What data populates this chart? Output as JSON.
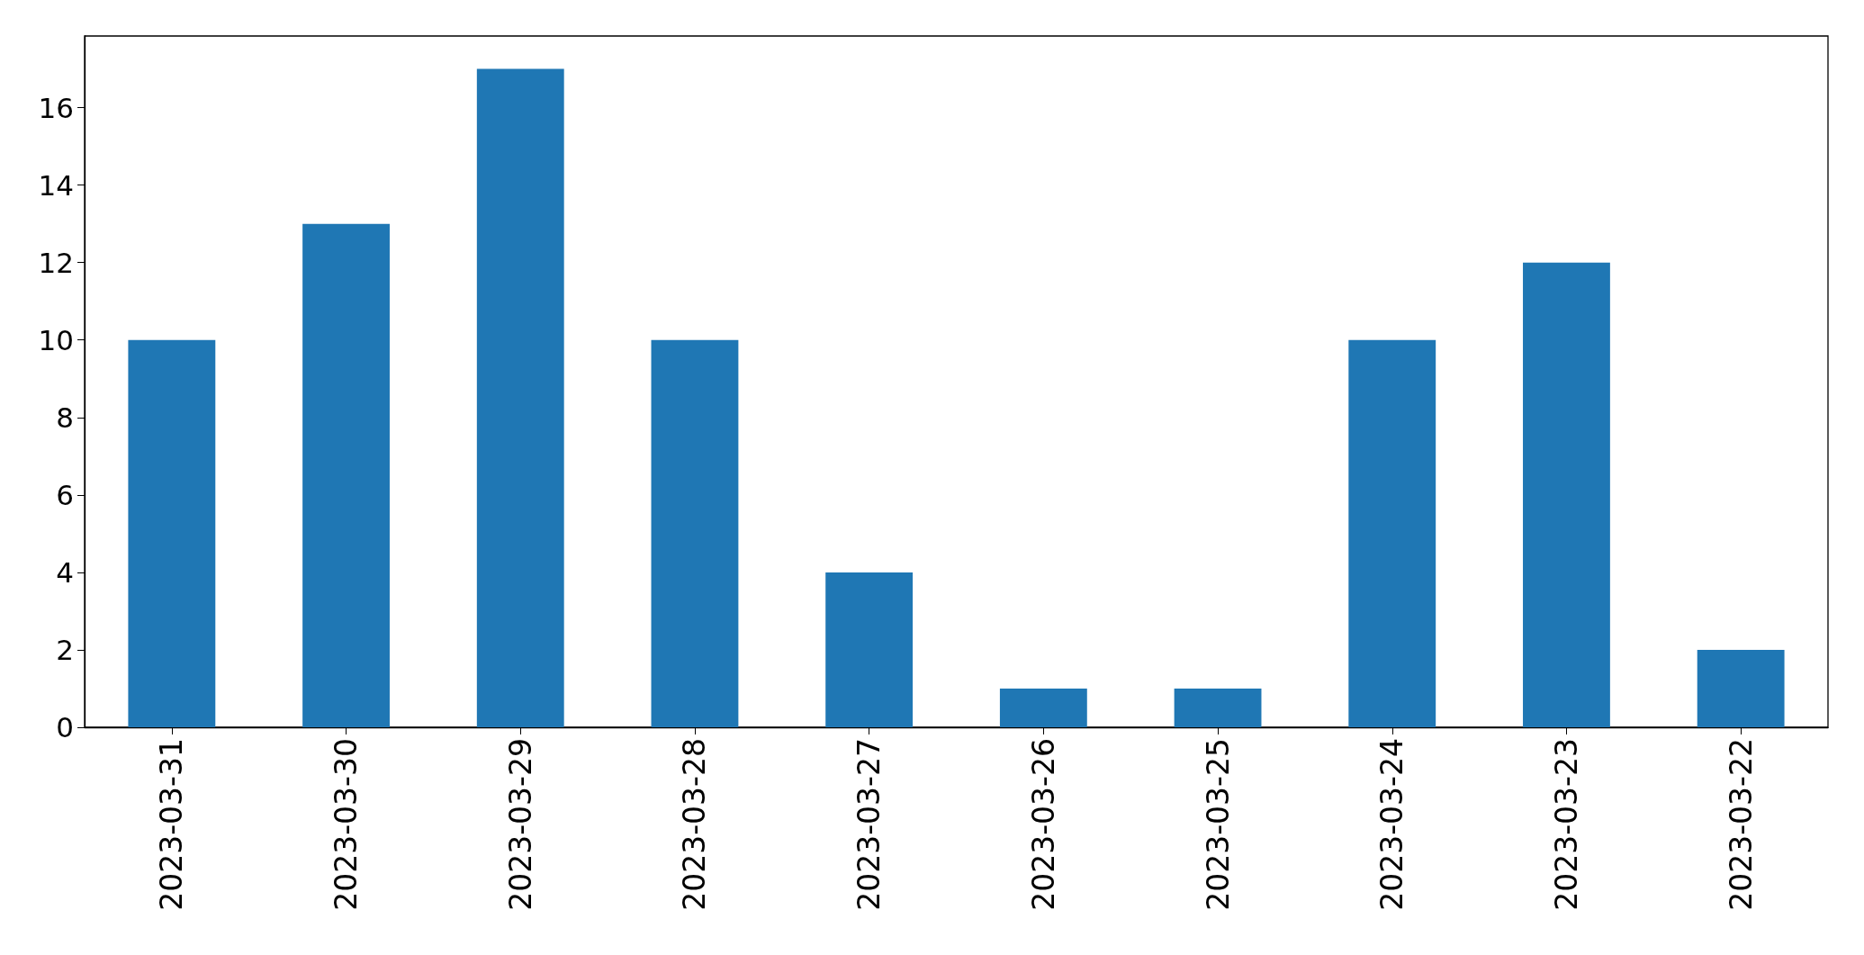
{
  "chart_data": {
    "type": "bar",
    "categories": [
      "2023-03-31",
      "2023-03-30",
      "2023-03-29",
      "2023-03-28",
      "2023-03-27",
      "2023-03-26",
      "2023-03-25",
      "2023-03-24",
      "2023-03-23",
      "2023-03-22"
    ],
    "values": [
      10,
      13,
      17,
      10,
      4,
      1,
      1,
      10,
      12,
      2
    ],
    "color": "#1f77b4",
    "ylim": [
      0,
      17.85
    ],
    "yticks": [
      0,
      2,
      4,
      6,
      8,
      10,
      12,
      14,
      16
    ],
    "grid": false
  }
}
